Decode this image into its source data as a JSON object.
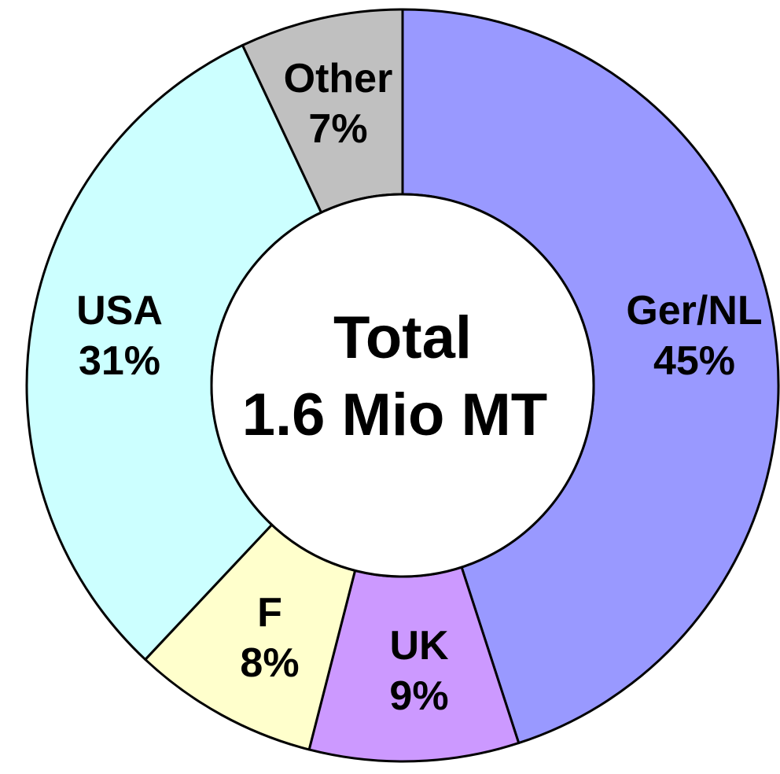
{
  "chart_data": {
    "type": "pie",
    "variant": "donut",
    "start_angle_deg": 0,
    "direction": "clockwise",
    "center_text": [
      "Total",
      "1.6 Mio MT"
    ],
    "slices": [
      {
        "label": "Ger/NL",
        "value": 45,
        "value_label": "45%",
        "color": "#9999ff"
      },
      {
        "label": "UK",
        "value": 9,
        "value_label": "9%",
        "color": "#cc99ff"
      },
      {
        "label": "F",
        "value": 8,
        "value_label": "8%",
        "color": "#ffffcc"
      },
      {
        "label": "USA",
        "value": 31,
        "value_label": "31%",
        "color": "#ccffff"
      },
      {
        "label": "Other",
        "value": 7,
        "value_label": "7%",
        "color": "#c0c0c0"
      }
    ]
  }
}
